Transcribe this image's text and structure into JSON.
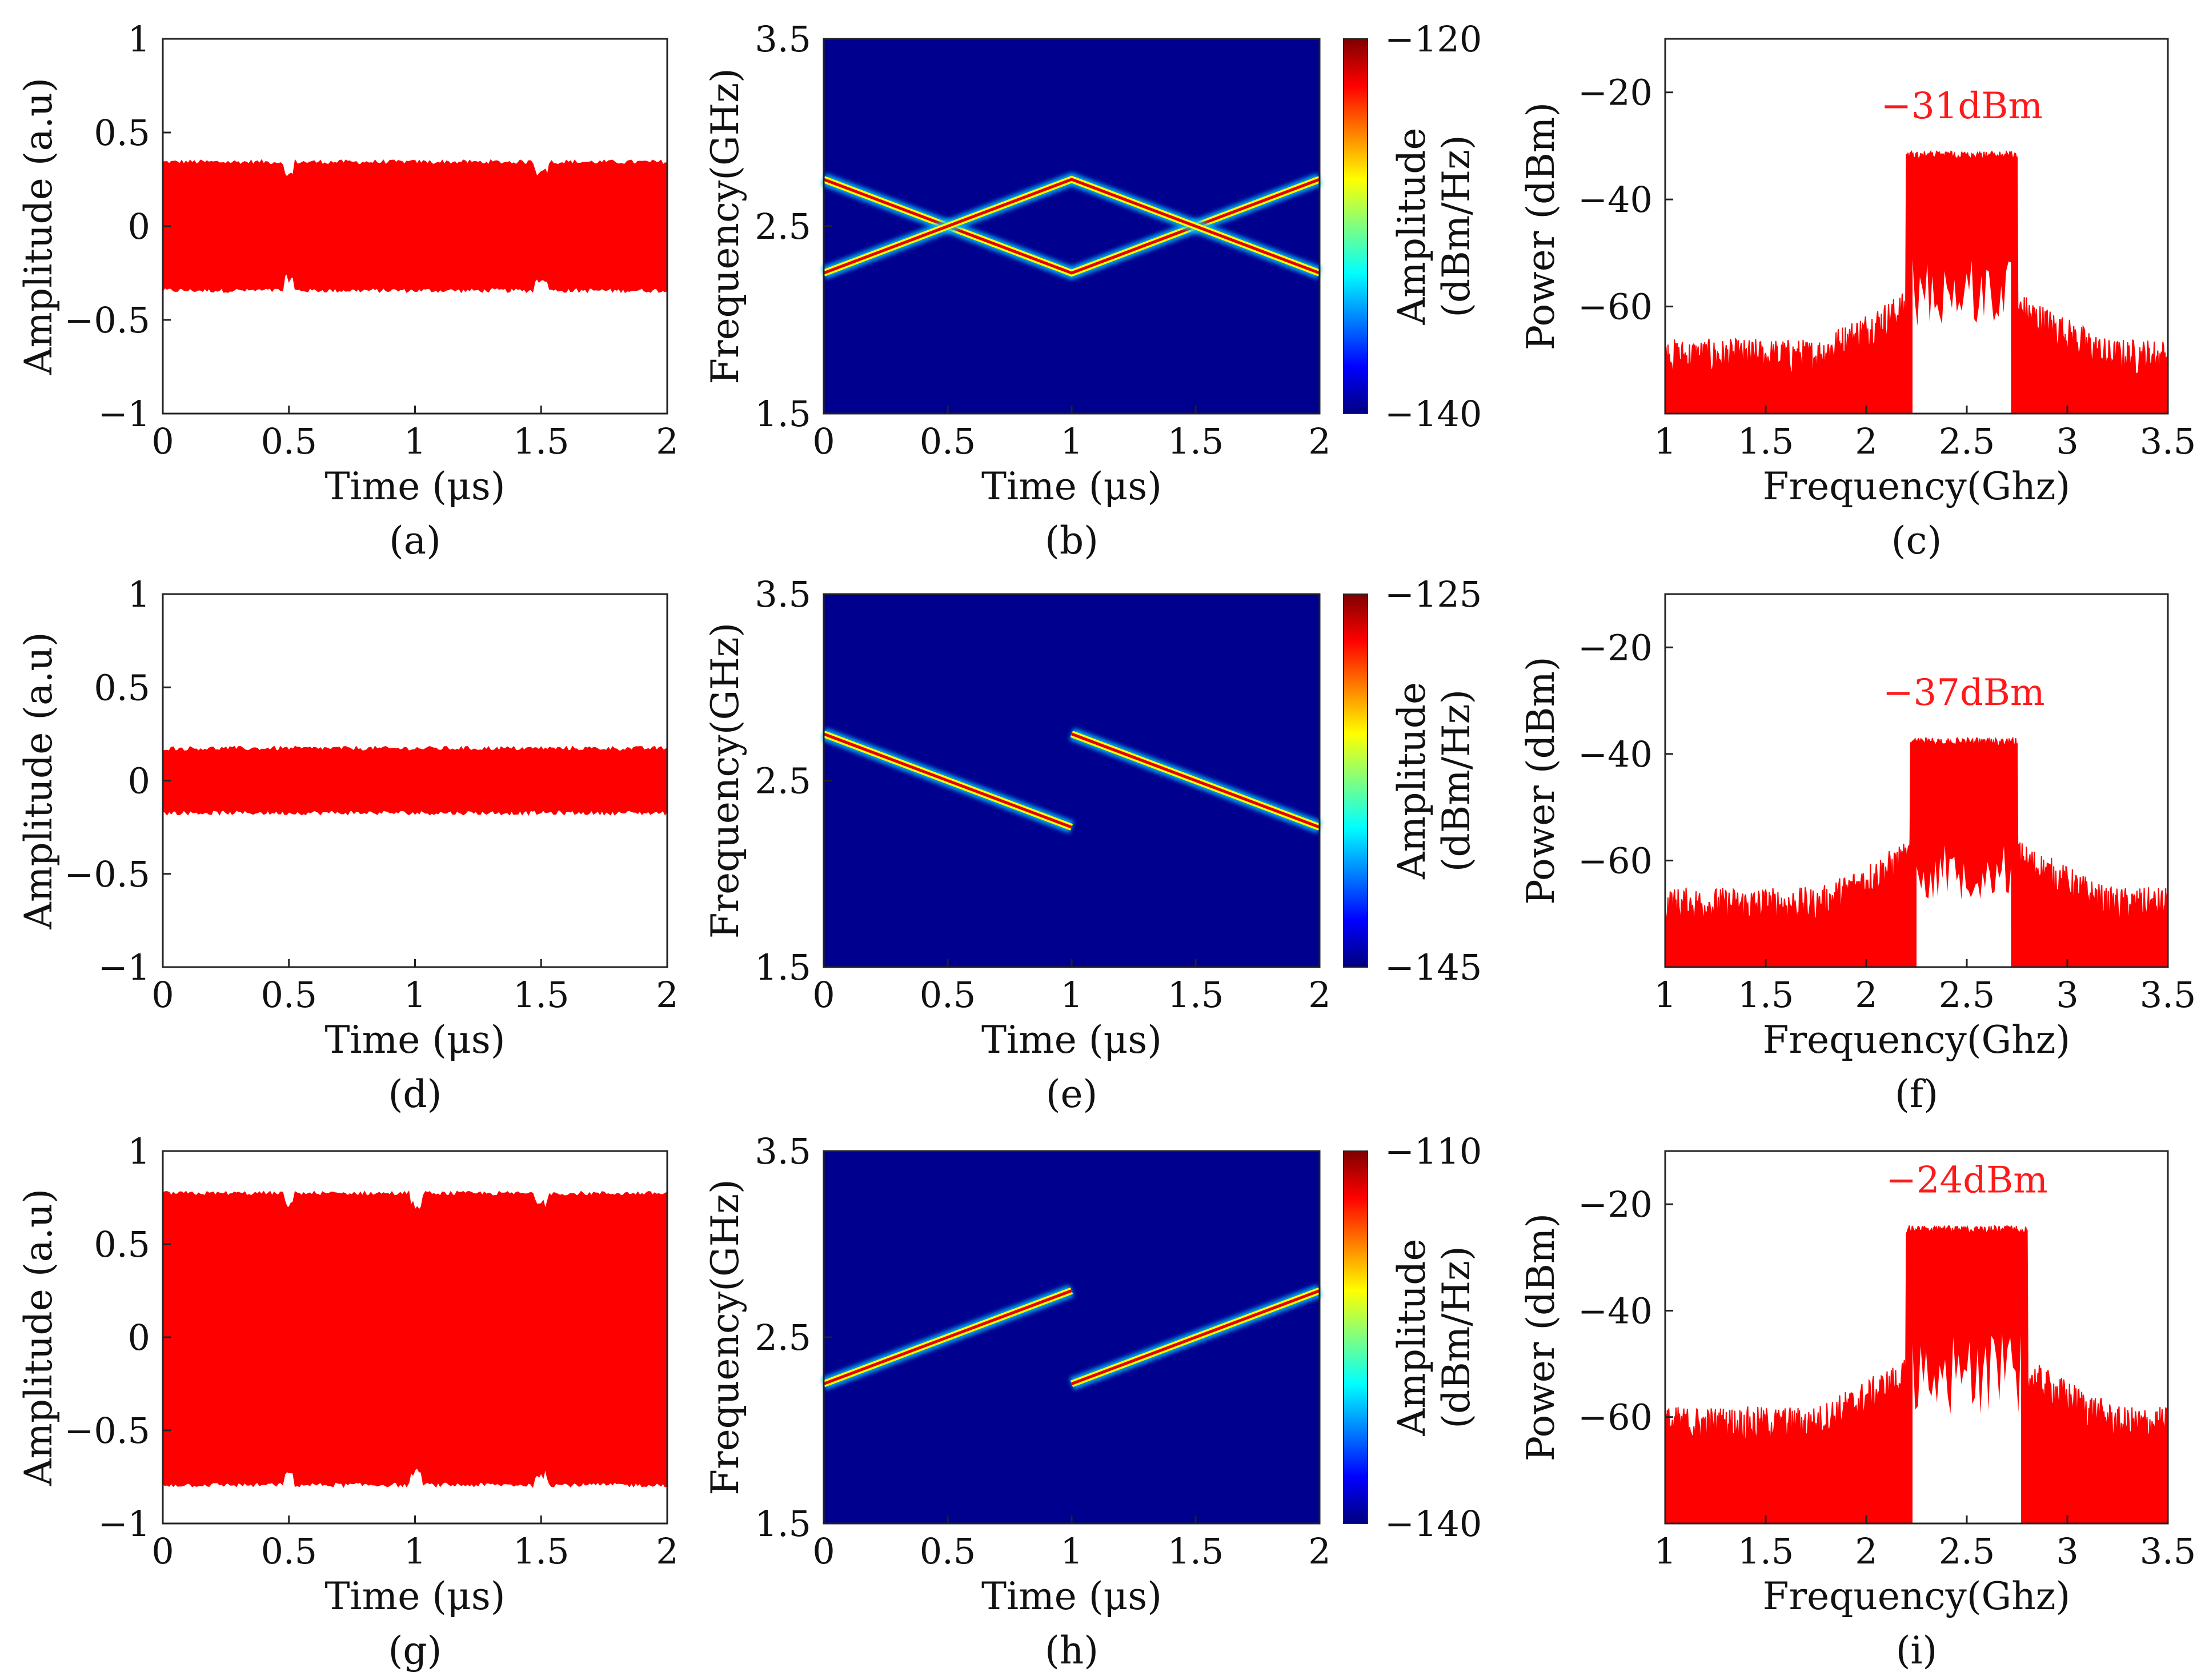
{
  "colors": {
    "signal": "#ff0000",
    "annotation": "#ff1a1a",
    "spectrogram_bg": "#00008f"
  },
  "chart_data": [
    {
      "id": "a",
      "type": "line",
      "panel_label": "(a)",
      "xlabel": "Time (μs)",
      "ylabel": "Amplitude (a.u)",
      "xlim": [
        0,
        2
      ],
      "ylim": [
        -1,
        1
      ],
      "xticks": [
        "0",
        "0.5",
        "1",
        "1.5",
        "2"
      ],
      "yticks": [
        "1",
        "0.5",
        "0",
        "−0.5",
        "−1"
      ],
      "envelope": {
        "upper": 0.34,
        "lower": -0.34,
        "dips_at": [
          0.5,
          1.5
        ]
      }
    },
    {
      "id": "b",
      "type": "heatmap",
      "panel_label": "(b)",
      "xlabel": "Time (μs)",
      "ylabel": "Frequency(GHz)",
      "xlim": [
        0,
        2
      ],
      "ylim": [
        1.5,
        3.5
      ],
      "xticks": [
        "0",
        "0.5",
        "1",
        "1.5",
        "2"
      ],
      "yticks": [
        "3.5",
        "2.5",
        "1.5"
      ],
      "colorbar": {
        "label_line1": "Amplitude",
        "label_line2": "(dBm/Hz)",
        "max_label": "−120",
        "min_label": "−140"
      },
      "lines": [
        {
          "t": [
            0,
            1,
            2
          ],
          "f": [
            2.75,
            2.25,
            2.75
          ]
        },
        {
          "t": [
            0,
            1,
            2
          ],
          "f": [
            2.25,
            2.75,
            2.25
          ]
        }
      ]
    },
    {
      "id": "c",
      "type": "line",
      "panel_label": "(c)",
      "xlabel": "Frequency(Ghz)",
      "ylabel": "Power (dBm)",
      "xlim": [
        1,
        3.5
      ],
      "ylim": [
        -80,
        -10
      ],
      "xticks": [
        "1",
        "1.5",
        "2",
        "2.5",
        "3",
        "3.5"
      ],
      "yticks": [
        "−20",
        "−40",
        "−60"
      ],
      "annotation": "−31dBm",
      "peak_dbm": -31,
      "band": [
        2.2,
        2.75
      ],
      "noise_floor_dbm": -73
    },
    {
      "id": "d",
      "type": "line",
      "panel_label": "(d)",
      "xlabel": "Time (μs)",
      "ylabel": "Amplitude (a.u)",
      "xlim": [
        0,
        2
      ],
      "ylim": [
        -1,
        1
      ],
      "xticks": [
        "0",
        "0.5",
        "1",
        "1.5",
        "2"
      ],
      "yticks": [
        "1",
        "0.5",
        "0",
        "−0.5",
        "−1"
      ],
      "envelope": {
        "upper": 0.17,
        "lower": -0.17,
        "dips_at": []
      }
    },
    {
      "id": "e",
      "type": "heatmap",
      "panel_label": "(e)",
      "xlabel": "Time (μs)",
      "ylabel": "Frequency(GHz)",
      "xlim": [
        0,
        2
      ],
      "ylim": [
        1.5,
        3.5
      ],
      "xticks": [
        "0",
        "0.5",
        "1",
        "1.5",
        "2"
      ],
      "yticks": [
        "3.5",
        "2.5",
        "1.5"
      ],
      "colorbar": {
        "label_line1": "Amplitude",
        "label_line2": "(dBm/Hz)",
        "max_label": "−125",
        "min_label": "−145"
      },
      "lines": [
        {
          "t": [
            0,
            1
          ],
          "f": [
            2.75,
            2.25
          ]
        },
        {
          "t": [
            1,
            2
          ],
          "f": [
            2.75,
            2.25
          ]
        }
      ]
    },
    {
      "id": "f",
      "type": "line",
      "panel_label": "(f)",
      "xlabel": "Frequency(Ghz)",
      "ylabel": "Power (dBm)",
      "xlim": [
        1,
        3.5
      ],
      "ylim": [
        -80,
        -10
      ],
      "xticks": [
        "1",
        "1.5",
        "2",
        "2.5",
        "3",
        "3.5"
      ],
      "yticks": [
        "−20",
        "−40",
        "−60"
      ],
      "annotation": "−37dBm",
      "peak_dbm": -37,
      "band": [
        2.22,
        2.75
      ],
      "noise_floor_dbm": -72
    },
    {
      "id": "g",
      "type": "line",
      "panel_label": "(g)",
      "xlabel": "Time (μs)",
      "ylabel": "Amplitude (a.u)",
      "xlim": [
        0,
        2
      ],
      "ylim": [
        -1,
        1
      ],
      "xticks": [
        "0",
        "0.5",
        "1",
        "1.5",
        "2"
      ],
      "yticks": [
        "1",
        "0.5",
        "0",
        "−0.5",
        "−1"
      ],
      "envelope": {
        "upper": 0.77,
        "lower": -0.79,
        "dips_at": [
          0.5,
          1,
          1.5
        ]
      }
    },
    {
      "id": "h",
      "type": "heatmap",
      "panel_label": "(h)",
      "xlabel": "Time (μs)",
      "ylabel": "Frequency(GHz)",
      "xlim": [
        0,
        2
      ],
      "ylim": [
        1.5,
        3.5
      ],
      "xticks": [
        "0",
        "0.5",
        "1",
        "1.5",
        "2"
      ],
      "yticks": [
        "3.5",
        "2.5",
        "1.5"
      ],
      "colorbar": {
        "label_line1": "Amplitude",
        "label_line2": "(dBm/Hz)",
        "max_label": "−110",
        "min_label": "−140"
      },
      "lines": [
        {
          "t": [
            0,
            1
          ],
          "f": [
            2.25,
            2.75
          ]
        },
        {
          "t": [
            1,
            2
          ],
          "f": [
            2.25,
            2.75
          ]
        }
      ]
    },
    {
      "id": "i",
      "type": "line",
      "panel_label": "(i)",
      "xlabel": "Frequency(Ghz)",
      "ylabel": "Power (dBm)",
      "xlim": [
        1,
        3.5
      ],
      "ylim": [
        -80,
        -10
      ],
      "xticks": [
        "1",
        "1.5",
        "2",
        "2.5",
        "3",
        "3.5"
      ],
      "yticks": [
        "−20",
        "−40",
        "−60"
      ],
      "annotation": "−24dBm",
      "peak_dbm": -24,
      "band": [
        2.2,
        2.8
      ],
      "noise_floor_dbm": -65
    }
  ]
}
